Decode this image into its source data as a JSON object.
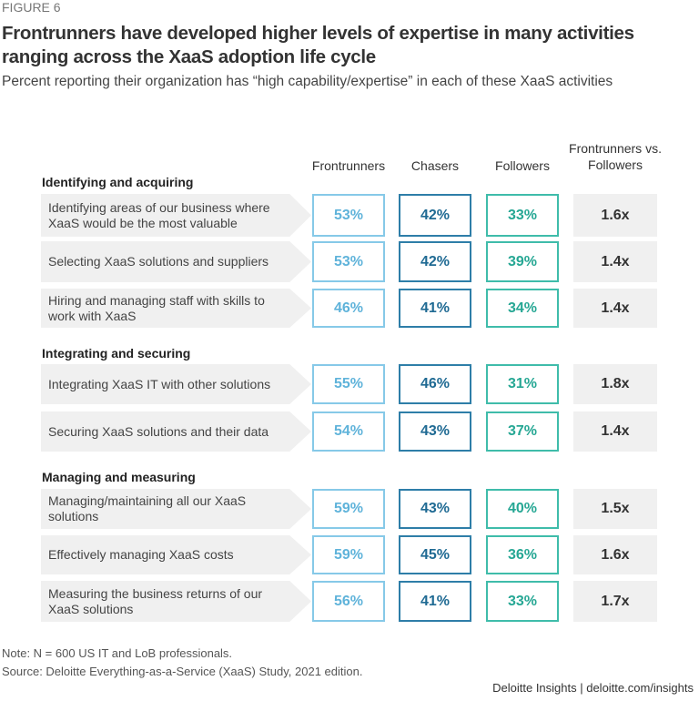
{
  "figure_label": "FIGURE 6",
  "title": "Frontrunners have developed higher levels of expertise in many activities ranging across the XaaS adoption life cycle",
  "subtitle": "Percent reporting their organization has “high capability/expertise” in each of these XaaS activities",
  "chart_data": {
    "type": "table",
    "columns": [
      "Frontrunners",
      "Chasers",
      "Followers",
      "Frontrunners vs. Followers"
    ],
    "colors": {
      "Frontrunners": "#5fb3da",
      "Chasers": "#1f6a93",
      "Followers": "#26a794"
    },
    "groups": [
      {
        "name": "Identifying and acquiring",
        "rows": [
          {
            "label": "Identifying areas of our business where XaaS would be the most valuable",
            "values": [
              "53%",
              "42%",
              "33%",
              "1.6x"
            ]
          },
          {
            "label": "Selecting XaaS solutions and suppliers",
            "values": [
              "53%",
              "42%",
              "39%",
              "1.4x"
            ]
          },
          {
            "label": "Hiring and managing staff with skills to work with XaaS",
            "values": [
              "46%",
              "41%",
              "34%",
              "1.4x"
            ]
          }
        ]
      },
      {
        "name": "Integrating and securing",
        "rows": [
          {
            "label": "Integrating XaaS IT with other solutions",
            "values": [
              "55%",
              "46%",
              "31%",
              "1.8x"
            ]
          },
          {
            "label": "Securing XaaS solutions and their data",
            "values": [
              "54%",
              "43%",
              "37%",
              "1.4x"
            ]
          }
        ]
      },
      {
        "name": "Managing and measuring",
        "rows": [
          {
            "label": "Managing/maintaining all our XaaS solutions",
            "values": [
              "59%",
              "43%",
              "40%",
              "1.5x"
            ]
          },
          {
            "label": "Effectively managing XaaS costs",
            "values": [
              "59%",
              "45%",
              "36%",
              "1.6x"
            ]
          },
          {
            "label": "Measuring the business returns of our XaaS solutions",
            "values": [
              "56%",
              "41%",
              "33%",
              "1.7x"
            ]
          }
        ]
      }
    ]
  },
  "note": "Note: N = 600 US IT and LoB professionals.",
  "source": "Source: Deloitte Everything-as-a-Service (XaaS) Study, 2021 edition.",
  "brand": "Deloitte Insights | deloitte.com/insights"
}
